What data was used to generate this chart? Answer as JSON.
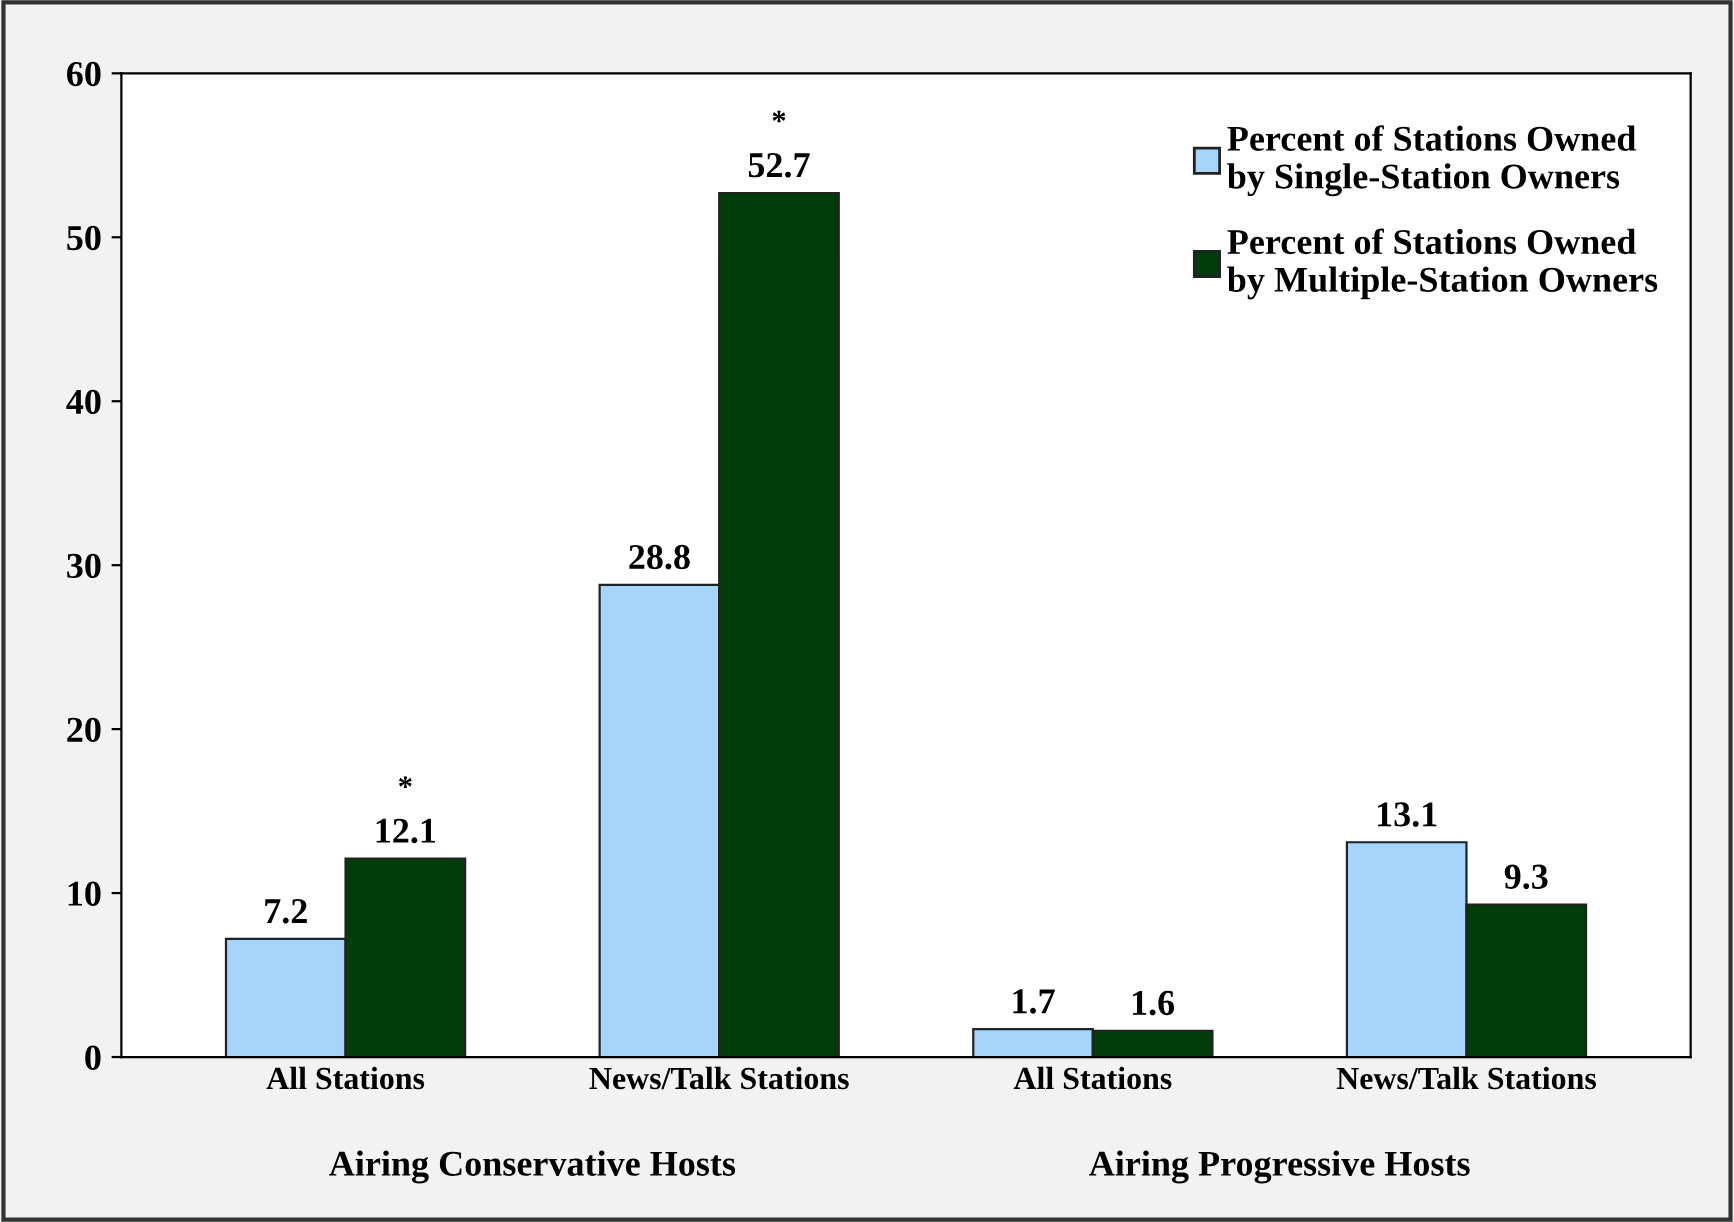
{
  "chart_data": {
    "type": "bar",
    "categories": [
      "All Stations",
      "News/Talk Stations",
      "All Stations",
      "News/Talk Stations"
    ],
    "series": [
      {
        "name": "Percent of Stations Owned\nby Single-Station Owners",
        "color": "#a6d4fa",
        "values": [
          7.2,
          28.8,
          1.7,
          13.1
        ]
      },
      {
        "name": "Percent of Stations Owned\nby Multiple-Station Owners",
        "color": "#003d0a",
        "values": [
          12.1,
          52.7,
          1.6,
          9.3
        ]
      }
    ],
    "ylim": [
      0,
      60
    ],
    "yticks": [
      0,
      10,
      20,
      30,
      40,
      50,
      60
    ],
    "grid": false,
    "legend": "top right",
    "data_labels": true,
    "annotations": [
      "Airing Conservative Hosts",
      "Airing Progressive Hosts",
      {
        "text": "*",
        "y": 12.1
      },
      {
        "text": "*",
        "y": 52.7
      }
    ]
  }
}
